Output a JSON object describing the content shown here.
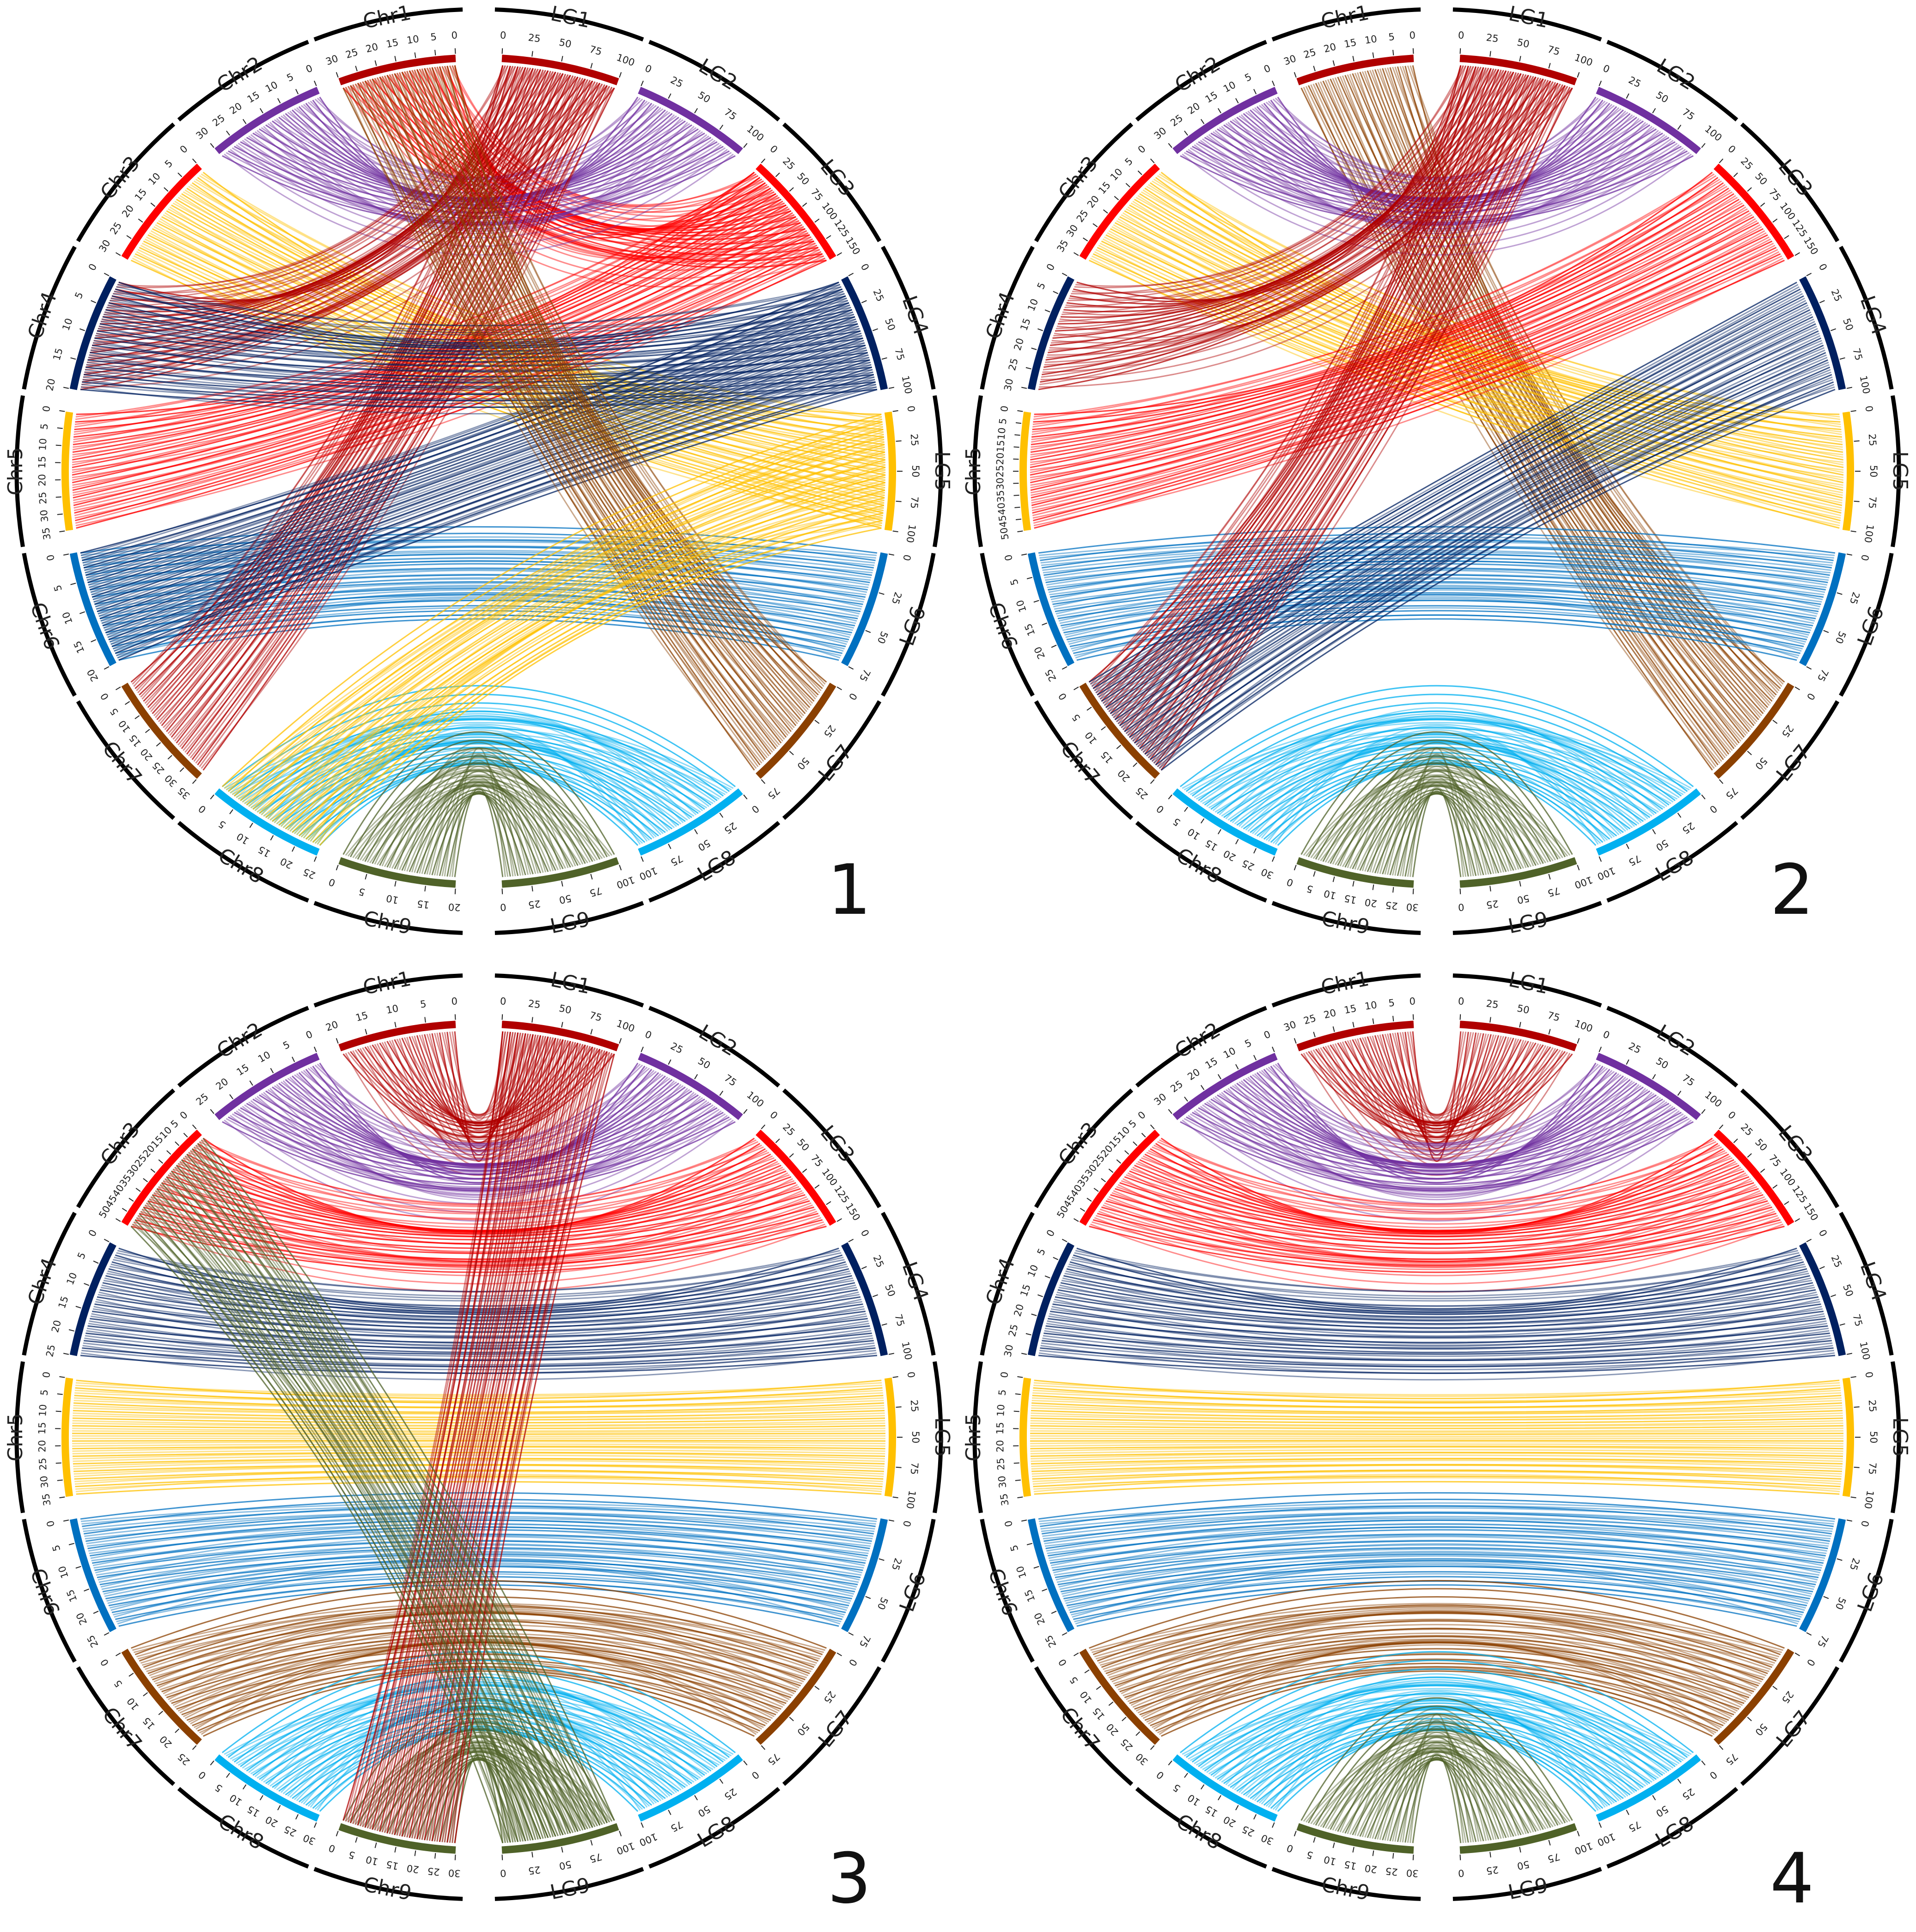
{
  "figure": {
    "panels": [
      {
        "number": "1",
        "chromosomes": [
          {
            "name": "Chr1",
            "ticks": [
              "0",
              "5",
              "10",
              "15",
              "20",
              "25",
              "30"
            ]
          },
          {
            "name": "Chr2",
            "ticks": [
              "0",
              "5",
              "10",
              "15",
              "20",
              "25",
              "30"
            ]
          },
          {
            "name": "Chr3",
            "ticks": [
              "0",
              "5",
              "10",
              "15",
              "20",
              "25",
              "30"
            ]
          },
          {
            "name": "Chr4",
            "ticks": [
              "0",
              "5",
              "10",
              "15",
              "20"
            ]
          },
          {
            "name": "Chr5",
            "ticks": [
              "0",
              "5",
              "10",
              "15",
              "20",
              "25",
              "30",
              "35"
            ]
          },
          {
            "name": "Chr6",
            "ticks": [
              "0",
              "5",
              "10",
              "15",
              "20"
            ]
          },
          {
            "name": "Chr7",
            "ticks": [
              "0",
              "5",
              "10",
              "15",
              "20",
              "25",
              "30",
              "35"
            ]
          },
          {
            "name": "Chr8",
            "ticks": [
              "0",
              "5",
              "10",
              "15",
              "20",
              "25"
            ]
          },
          {
            "name": "Chr9",
            "ticks": [
              "0",
              "5",
              "10",
              "15",
              "20"
            ]
          }
        ],
        "linkage_groups": [
          {
            "name": "LG1",
            "ticks": [
              "0",
              "25",
              "50",
              "75",
              "100"
            ]
          },
          {
            "name": "LG2",
            "ticks": [
              "0",
              "25",
              "50",
              "75",
              "100"
            ]
          },
          {
            "name": "LG3",
            "ticks": [
              "0",
              "25",
              "50",
              "75",
              "100",
              "125",
              "150"
            ]
          },
          {
            "name": "LG4",
            "ticks": [
              "0",
              "25",
              "50",
              "75",
              "100"
            ]
          },
          {
            "name": "LG5",
            "ticks": [
              "0",
              "25",
              "50",
              "75",
              "100"
            ]
          },
          {
            "name": "LG6",
            "ticks": [
              "0",
              "25",
              "50",
              "75"
            ]
          },
          {
            "name": "LG7",
            "ticks": [
              "0",
              "25",
              "50",
              "75"
            ]
          },
          {
            "name": "LG8",
            "ticks": [
              "0",
              "25",
              "50",
              "75",
              "100"
            ]
          },
          {
            "name": "LG9",
            "ticks": [
              "100",
              "75",
              "50",
              "25",
              "0"
            ]
          }
        ],
        "links": [
          [
            0,
            2
          ],
          [
            1,
            1
          ],
          [
            2,
            4
          ],
          [
            3,
            0
          ],
          [
            4,
            2
          ],
          [
            5,
            5
          ],
          [
            6,
            0
          ],
          [
            7,
            7
          ],
          [
            8,
            8
          ],
          [
            3,
            3
          ],
          [
            5,
            3
          ],
          [
            0,
            6
          ],
          [
            7,
            4
          ]
        ]
      },
      {
        "number": "2",
        "chromosomes": [
          {
            "name": "Chr1",
            "ticks": [
              "0",
              "5",
              "10",
              "15",
              "20",
              "25",
              "30"
            ]
          },
          {
            "name": "Chr2",
            "ticks": [
              "0",
              "5",
              "10",
              "15",
              "20",
              "25",
              "30"
            ]
          },
          {
            "name": "Chr3",
            "ticks": [
              "0",
              "5",
              "10",
              "15",
              "20",
              "25",
              "30",
              "35"
            ]
          },
          {
            "name": "Chr4",
            "ticks": [
              "0",
              "5",
              "10",
              "15",
              "20",
              "25",
              "30"
            ]
          },
          {
            "name": "Chr5",
            "ticks": [
              "0",
              "5",
              "10",
              "15",
              "20",
              "25",
              "30",
              "35",
              "40",
              "45",
              "50"
            ]
          },
          {
            "name": "Chr6",
            "ticks": [
              "0",
              "5",
              "10",
              "15",
              "20",
              "25"
            ]
          },
          {
            "name": "Chr7",
            "ticks": [
              "0",
              "5",
              "10",
              "15",
              "20",
              "25"
            ]
          },
          {
            "name": "Chr8",
            "ticks": [
              "0",
              "5",
              "10",
              "15",
              "20",
              "25",
              "30"
            ]
          },
          {
            "name": "Chr9",
            "ticks": [
              "0",
              "5",
              "10",
              "15",
              "20",
              "25",
              "30"
            ]
          }
        ],
        "linkage_groups": [
          {
            "name": "LG1",
            "ticks": [
              "0",
              "25",
              "50",
              "75",
              "100"
            ]
          },
          {
            "name": "LG2",
            "ticks": [
              "0",
              "25",
              "50",
              "75",
              "100"
            ]
          },
          {
            "name": "LG3",
            "ticks": [
              "0",
              "25",
              "50",
              "75",
              "100",
              "125",
              "150"
            ]
          },
          {
            "name": "LG4",
            "ticks": [
              "0",
              "25",
              "50",
              "75",
              "100"
            ]
          },
          {
            "name": "LG5",
            "ticks": [
              "0",
              "25",
              "50",
              "75",
              "100"
            ]
          },
          {
            "name": "LG6",
            "ticks": [
              "0",
              "25",
              "50",
              "75"
            ]
          },
          {
            "name": "LG7",
            "ticks": [
              "0",
              "25",
              "50",
              "75"
            ]
          },
          {
            "name": "LG8",
            "ticks": [
              "0",
              "25",
              "50",
              "75",
              "100"
            ]
          },
          {
            "name": "LG9",
            "ticks": [
              "100",
              "75",
              "50",
              "25",
              "0"
            ]
          }
        ],
        "links": [
          [
            0,
            6
          ],
          [
            1,
            1
          ],
          [
            2,
            4
          ],
          [
            3,
            0
          ],
          [
            4,
            2
          ],
          [
            5,
            5
          ],
          [
            6,
            0
          ],
          [
            7,
            7
          ],
          [
            8,
            8
          ],
          [
            6,
            3
          ]
        ]
      },
      {
        "number": "3",
        "chromosomes": [
          {
            "name": "Chr1",
            "ticks": [
              "0",
              "5",
              "10",
              "15",
              "20"
            ]
          },
          {
            "name": "Chr2",
            "ticks": [
              "0",
              "5",
              "10",
              "15",
              "20",
              "25"
            ]
          },
          {
            "name": "Chr3",
            "ticks": [
              "0",
              "5",
              "10",
              "15",
              "20",
              "25",
              "30",
              "35",
              "40",
              "45",
              "50"
            ]
          },
          {
            "name": "Chr4",
            "ticks": [
              "0",
              "5",
              "10",
              "15",
              "20",
              "25"
            ]
          },
          {
            "name": "Chr5",
            "ticks": [
              "0",
              "5",
              "10",
              "15",
              "20",
              "25",
              "30",
              "35"
            ]
          },
          {
            "name": "Chr6",
            "ticks": [
              "0",
              "5",
              "10",
              "15",
              "20",
              "25"
            ]
          },
          {
            "name": "Chr7",
            "ticks": [
              "0",
              "5",
              "10",
              "15",
              "20",
              "25"
            ]
          },
          {
            "name": "Chr8",
            "ticks": [
              "0",
              "5",
              "10",
              "15",
              "20",
              "25",
              "30"
            ]
          },
          {
            "name": "Chr9",
            "ticks": [
              "0",
              "5",
              "10",
              "15",
              "20",
              "25",
              "30"
            ]
          }
        ],
        "linkage_groups": [
          {
            "name": "LG1",
            "ticks": [
              "0",
              "25",
              "50",
              "75",
              "100"
            ]
          },
          {
            "name": "LG2",
            "ticks": [
              "0",
              "25",
              "50",
              "75",
              "100"
            ]
          },
          {
            "name": "LG3",
            "ticks": [
              "0",
              "25",
              "50",
              "75",
              "100",
              "125",
              "150"
            ]
          },
          {
            "name": "LG4",
            "ticks": [
              "0",
              "25",
              "50",
              "75",
              "100"
            ]
          },
          {
            "name": "LG5",
            "ticks": [
              "0",
              "25",
              "50",
              "75",
              "100"
            ]
          },
          {
            "name": "LG6",
            "ticks": [
              "0",
              "25",
              "50",
              "75"
            ]
          },
          {
            "name": "LG7",
            "ticks": [
              "0",
              "25",
              "50",
              "75"
            ]
          },
          {
            "name": "LG8",
            "ticks": [
              "0",
              "25",
              "50",
              "75",
              "100"
            ]
          },
          {
            "name": "LG9",
            "ticks": [
              "100",
              "75",
              "50",
              "25",
              "0"
            ]
          }
        ],
        "links": [
          [
            0,
            0
          ],
          [
            1,
            1
          ],
          [
            2,
            2
          ],
          [
            3,
            3
          ],
          [
            4,
            4
          ],
          [
            5,
            5
          ],
          [
            6,
            6
          ],
          [
            7,
            7
          ],
          [
            8,
            8
          ],
          [
            8,
            0
          ],
          [
            2,
            8
          ]
        ]
      },
      {
        "number": "4",
        "chromosomes": [
          {
            "name": "Chr1",
            "ticks": [
              "0",
              "5",
              "10",
              "15",
              "20",
              "25",
              "30"
            ]
          },
          {
            "name": "Chr2",
            "ticks": [
              "0",
              "5",
              "10",
              "15",
              "20",
              "25",
              "30"
            ]
          },
          {
            "name": "Chr3",
            "ticks": [
              "0",
              "5",
              "10",
              "15",
              "20",
              "25",
              "30",
              "35",
              "40",
              "45",
              "50"
            ]
          },
          {
            "name": "Chr4",
            "ticks": [
              "0",
              "5",
              "10",
              "15",
              "20",
              "25",
              "30"
            ]
          },
          {
            "name": "Chr5",
            "ticks": [
              "0",
              "5",
              "10",
              "15",
              "20",
              "25",
              "30",
              "35"
            ]
          },
          {
            "name": "Chr6",
            "ticks": [
              "0",
              "5",
              "10",
              "15",
              "20",
              "25"
            ]
          },
          {
            "name": "Chr7",
            "ticks": [
              "0",
              "5",
              "10",
              "15",
              "20",
              "25",
              "30"
            ]
          },
          {
            "name": "Chr8",
            "ticks": [
              "0",
              "5",
              "10",
              "15",
              "20",
              "25",
              "30"
            ]
          },
          {
            "name": "Chr9",
            "ticks": [
              "0",
              "5",
              "10",
              "15",
              "20",
              "25",
              "30"
            ]
          }
        ],
        "linkage_groups": [
          {
            "name": "LG1",
            "ticks": [
              "0",
              "25",
              "50",
              "75",
              "100"
            ]
          },
          {
            "name": "LG2",
            "ticks": [
              "0",
              "25",
              "50",
              "75",
              "100"
            ]
          },
          {
            "name": "LG3",
            "ticks": [
              "0",
              "25",
              "50",
              "75",
              "100",
              "125",
              "150"
            ]
          },
          {
            "name": "LG4",
            "ticks": [
              "0",
              "25",
              "50",
              "75",
              "100"
            ]
          },
          {
            "name": "LG5",
            "ticks": [
              "0",
              "25",
              "50",
              "75",
              "100"
            ]
          },
          {
            "name": "LG6",
            "ticks": [
              "0",
              "25",
              "50",
              "75"
            ]
          },
          {
            "name": "LG7",
            "ticks": [
              "0",
              "25",
              "50",
              "75"
            ]
          },
          {
            "name": "LG8",
            "ticks": [
              "0",
              "25",
              "50",
              "75",
              "100"
            ]
          },
          {
            "name": "LG9",
            "ticks": [
              "100",
              "75",
              "50",
              "25",
              "0"
            ]
          }
        ],
        "links": [
          [
            0,
            0
          ],
          [
            1,
            1
          ],
          [
            2,
            2
          ],
          [
            3,
            3
          ],
          [
            4,
            4
          ],
          [
            5,
            5
          ],
          [
            6,
            6
          ],
          [
            7,
            7
          ],
          [
            8,
            8
          ]
        ]
      }
    ],
    "colors": {
      "lg1": "#b00000",
      "lg2": "#7030a0",
      "lg3": "#ff0000",
      "lg4": "#002060",
      "lg5": "#ffc000",
      "lg6": "#0070c0",
      "lg7": "#8b4000",
      "lg8": "#00b0f0",
      "lg9": "#4f6228",
      "outer_ring": "#000000",
      "background": "#ffffff"
    }
  }
}
